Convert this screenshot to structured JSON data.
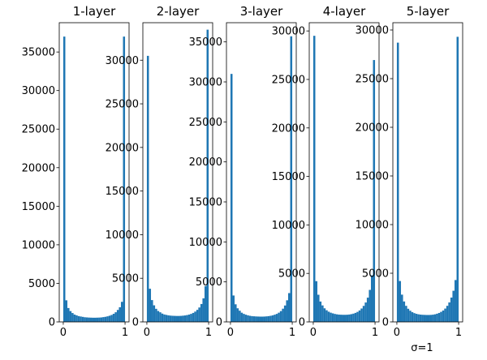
{
  "chart_data": [
    {
      "type": "histogram",
      "title": "1-layer",
      "color": "#1f77b4",
      "bins": [
        0,
        0.0333,
        0.0667,
        0.1,
        0.1333,
        0.1667,
        0.2,
        0.2333,
        0.2667,
        0.3,
        0.3333,
        0.3667,
        0.4,
        0.4333,
        0.4667,
        0.5,
        0.5333,
        0.5667,
        0.6,
        0.6333,
        0.6667,
        0.7,
        0.7333,
        0.7667,
        0.8,
        0.8333,
        0.8667,
        0.9,
        0.9333,
        0.9667,
        1
      ],
      "values": [
        37000,
        2800,
        1800,
        1400,
        1150,
        950,
        850,
        750,
        700,
        650,
        600,
        580,
        560,
        550,
        540,
        540,
        550,
        560,
        580,
        620,
        660,
        720,
        800,
        900,
        1050,
        1250,
        1550,
        1900,
        2600,
        37000
      ],
      "xlim": [
        -0.065,
        1.065
      ],
      "xticks": [
        0,
        1
      ],
      "ylim": [
        0,
        38800
      ],
      "yticks": [
        0,
        5000,
        10000,
        15000,
        20000,
        25000,
        30000,
        35000
      ]
    },
    {
      "type": "histogram",
      "title": "2-layer",
      "color": "#1f77b4",
      "bins": [
        0,
        0.0333,
        0.0667,
        0.1,
        0.1333,
        0.1667,
        0.2,
        0.2333,
        0.2667,
        0.3,
        0.3333,
        0.3667,
        0.4,
        0.4333,
        0.4667,
        0.5,
        0.5333,
        0.5667,
        0.6,
        0.6333,
        0.6667,
        0.7,
        0.7333,
        0.7667,
        0.8,
        0.8333,
        0.8667,
        0.9,
        0.9333,
        0.9667,
        1
      ],
      "values": [
        30500,
        3800,
        2500,
        1900,
        1500,
        1250,
        1100,
        950,
        850,
        800,
        750,
        720,
        700,
        690,
        680,
        680,
        690,
        710,
        740,
        780,
        840,
        920,
        1030,
        1180,
        1380,
        1650,
        2050,
        2700,
        4100,
        33500
      ],
      "xlim": [
        -0.065,
        1.065
      ],
      "xticks": [
        0,
        1
      ],
      "ylim": [
        0,
        34300
      ],
      "yticks": [
        0,
        5000,
        10000,
        15000,
        20000,
        25000,
        30000
      ]
    },
    {
      "type": "histogram",
      "title": "3-layer",
      "color": "#1f77b4",
      "bins": [
        0,
        0.0333,
        0.0667,
        0.1,
        0.1333,
        0.1667,
        0.2,
        0.2333,
        0.2667,
        0.3,
        0.3333,
        0.3667,
        0.4,
        0.4333,
        0.4667,
        0.5,
        0.5333,
        0.5667,
        0.6,
        0.6333,
        0.6667,
        0.7,
        0.7333,
        0.7667,
        0.8,
        0.8333,
        0.8667,
        0.9,
        0.9333,
        0.9667,
        1
      ],
      "values": [
        31000,
        3300,
        2200,
        1700,
        1400,
        1150,
        1000,
        900,
        820,
        760,
        720,
        700,
        680,
        670,
        660,
        660,
        670,
        690,
        720,
        760,
        820,
        900,
        1000,
        1150,
        1350,
        1650,
        2050,
        2700,
        3600,
        35700
      ],
      "xlim": [
        -0.065,
        1.065
      ],
      "xticks": [
        0,
        1
      ],
      "ylim": [
        0,
        37400
      ],
      "yticks": [
        0,
        5000,
        10000,
        15000,
        20000,
        25000,
        30000,
        35000
      ]
    },
    {
      "type": "histogram",
      "title": "4-layer",
      "color": "#1f77b4",
      "bins": [
        0,
        0.0333,
        0.0667,
        0.1,
        0.1333,
        0.1667,
        0.2,
        0.2333,
        0.2667,
        0.3,
        0.3333,
        0.3667,
        0.4,
        0.4333,
        0.4667,
        0.5,
        0.5333,
        0.5667,
        0.6,
        0.6333,
        0.6667,
        0.7,
        0.7333,
        0.7667,
        0.8,
        0.8333,
        0.8667,
        0.9,
        0.9333,
        0.9667,
        1
      ],
      "values": [
        29500,
        4200,
        2800,
        2100,
        1700,
        1400,
        1200,
        1050,
        950,
        880,
        820,
        780,
        750,
        740,
        730,
        730,
        740,
        760,
        800,
        850,
        930,
        1030,
        1180,
        1380,
        1650,
        2000,
        2500,
        3300,
        4800,
        27000
      ],
      "xlim": [
        -0.065,
        1.065
      ],
      "xticks": [
        0,
        1
      ],
      "ylim": [
        0,
        30850
      ],
      "yticks": [
        0,
        5000,
        10000,
        15000,
        20000,
        25000,
        30000
      ]
    },
    {
      "type": "histogram",
      "title": "5-layer",
      "color": "#1f77b4",
      "bins": [
        0,
        0.0333,
        0.0667,
        0.1,
        0.1333,
        0.1667,
        0.2,
        0.2333,
        0.2667,
        0.3,
        0.3333,
        0.3667,
        0.4,
        0.4333,
        0.4667,
        0.5,
        0.5333,
        0.5667,
        0.6,
        0.6333,
        0.6667,
        0.7,
        0.7333,
        0.7667,
        0.8,
        0.8333,
        0.8667,
        0.9,
        0.9333,
        0.9667,
        1
      ],
      "values": [
        28700,
        4200,
        2800,
        2100,
        1650,
        1350,
        1150,
        1000,
        900,
        830,
        780,
        750,
        730,
        720,
        710,
        710,
        720,
        740,
        780,
        840,
        920,
        1030,
        1170,
        1370,
        1650,
        2000,
        2500,
        3200,
        4300,
        29300
      ],
      "xlim": [
        -0.065,
        1.065
      ],
      "xticks": [
        0,
        1
      ],
      "ylim": [
        0,
        30750
      ],
      "yticks": [
        0,
        5000,
        10000,
        15000,
        20000,
        25000,
        30000
      ]
    }
  ],
  "annotation": "σ=1"
}
